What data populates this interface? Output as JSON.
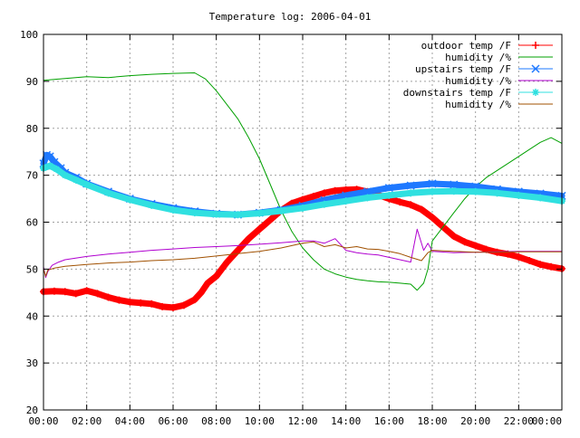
{
  "chart_data": {
    "type": "line",
    "title": "Temperature log: 2006-04-01",
    "xlabel": "",
    "ylabel": "",
    "x_unit": "hour",
    "xlim": [
      0,
      24
    ],
    "ylim": [
      20,
      100
    ],
    "x_ticks": [
      0,
      2,
      4,
      6,
      8,
      10,
      12,
      14,
      16,
      18,
      20,
      22,
      24
    ],
    "x_tick_labels": [
      "00:00",
      "02:00",
      "04:00",
      "06:00",
      "08:00",
      "10:00",
      "12:00",
      "14:00",
      "16:00",
      "18:00",
      "20:00",
      "22:00",
      "00:00"
    ],
    "y_ticks": [
      20,
      30,
      40,
      50,
      60,
      70,
      80,
      90,
      100
    ],
    "y_tick_labels": [
      "20",
      "30",
      "40",
      "50",
      "60",
      "70",
      "80",
      "90",
      "100"
    ],
    "grid": true,
    "legend_position": "top-right",
    "series": [
      {
        "name": "outdoor temp /F",
        "color": "#ff0000",
        "marker": "plus",
        "style": "thick",
        "x": [
          0,
          0.5,
          1,
          1.5,
          2,
          2.5,
          3,
          3.5,
          4,
          4.5,
          5,
          5.5,
          6,
          6.5,
          7,
          7.3,
          7.6,
          8,
          8.5,
          9,
          9.5,
          10,
          10.5,
          11,
          11.5,
          12,
          12.5,
          13,
          13.5,
          14,
          14.5,
          15,
          15.5,
          16,
          16.5,
          17,
          17.5,
          18,
          18.5,
          19,
          19.5,
          20,
          20.5,
          21,
          21.5,
          22,
          22.5,
          23,
          23.5,
          24
        ],
        "y": [
          45.2,
          45.3,
          45.2,
          44.8,
          45.4,
          44.8,
          44.0,
          43.4,
          43.0,
          42.8,
          42.6,
          42.0,
          41.8,
          42.3,
          43.5,
          45.0,
          47.0,
          48.5,
          51.5,
          54.0,
          56.5,
          58.5,
          60.5,
          62.5,
          64.0,
          64.8,
          65.5,
          66.2,
          66.7,
          66.9,
          67.0,
          66.5,
          65.8,
          65.0,
          64.3,
          63.7,
          62.7,
          61.0,
          59.0,
          57.0,
          55.8,
          55.0,
          54.2,
          53.6,
          53.2,
          52.6,
          51.8,
          51.0,
          50.5,
          50.1
        ]
      },
      {
        "name": "humidity /%",
        "color": "#00a000",
        "marker": "none",
        "style": "thin",
        "x": [
          0,
          1,
          2,
          3,
          4,
          5,
          6,
          7,
          7.5,
          8,
          8.5,
          9,
          9.5,
          10,
          10.5,
          11,
          11.5,
          12,
          12.5,
          13,
          13.5,
          14,
          14.5,
          15,
          15.5,
          16,
          16.5,
          17,
          17.3,
          17.6,
          17.8,
          18,
          18.5,
          19,
          19.5,
          20,
          20.5,
          21,
          21.5,
          22,
          22.5,
          23,
          23.5,
          24
        ],
        "y": [
          90.2,
          90.6,
          91.0,
          90.8,
          91.2,
          91.5,
          91.7,
          91.8,
          90.5,
          88.0,
          85.0,
          82.0,
          78.0,
          73.5,
          68.0,
          62.5,
          58.0,
          54.5,
          52.0,
          50.0,
          49.0,
          48.3,
          47.8,
          47.5,
          47.3,
          47.2,
          47.0,
          46.8,
          45.5,
          47.0,
          50.0,
          56.0,
          59.0,
          62.0,
          65.0,
          67.5,
          69.5,
          71.0,
          72.5,
          74.0,
          75.5,
          77.0,
          78.0,
          76.8
        ]
      },
      {
        "name": "upstairs temp /F",
        "color": "#1e78ff",
        "marker": "x",
        "style": "thick",
        "x": [
          0,
          0.15,
          0.3,
          0.5,
          0.8,
          1,
          1.5,
          2,
          3,
          4,
          5,
          6,
          7,
          8,
          9,
          10,
          11,
          12,
          13,
          14,
          15,
          16,
          17,
          18,
          19,
          20,
          21,
          22,
          23,
          24
        ],
        "y": [
          72.5,
          74.3,
          74.0,
          72.8,
          71.5,
          70.5,
          69.5,
          68.2,
          66.5,
          65.0,
          63.9,
          63.0,
          62.3,
          61.8,
          61.6,
          62.0,
          62.6,
          63.5,
          64.7,
          65.7,
          66.5,
          67.3,
          67.8,
          68.2,
          68.0,
          67.6,
          67.0,
          66.5,
          66.1,
          65.6
        ]
      },
      {
        "name": "humidity /%",
        "color": "#b000d0",
        "marker": "none",
        "style": "thin",
        "x": [
          0,
          0.1,
          0.2,
          0.4,
          0.7,
          1,
          2,
          3,
          4,
          5,
          6,
          7,
          8,
          9,
          10,
          11,
          12,
          12.5,
          13,
          13.5,
          14,
          14.5,
          15,
          15.5,
          16,
          16.5,
          17,
          17.3,
          17.6,
          17.8,
          18,
          19,
          20,
          21,
          22,
          23,
          24
        ],
        "y": [
          50.5,
          48.2,
          49.5,
          50.8,
          51.5,
          52.0,
          52.7,
          53.2,
          53.6,
          54.0,
          54.3,
          54.6,
          54.8,
          55.0,
          55.3,
          55.6,
          56.0,
          56.0,
          55.5,
          56.5,
          54.0,
          53.5,
          53.2,
          53.0,
          52.5,
          52.0,
          51.5,
          58.5,
          54.0,
          55.5,
          53.8,
          53.5,
          53.6,
          53.7,
          53.8,
          53.8,
          53.8
        ]
      },
      {
        "name": "downstairs temp /F",
        "color": "#30e0e0",
        "marker": "star",
        "style": "thick",
        "x": [
          0,
          0.3,
          0.6,
          1,
          1.5,
          2,
          3,
          4,
          5,
          6,
          7,
          8,
          9,
          10,
          11,
          12,
          13,
          14,
          15,
          16,
          17,
          18,
          19,
          20,
          21,
          22,
          23,
          24
        ],
        "y": [
          71.5,
          72.0,
          71.3,
          70.0,
          69.0,
          68.0,
          66.2,
          64.8,
          63.6,
          62.6,
          62.0,
          61.7,
          61.6,
          61.9,
          62.4,
          63.0,
          63.8,
          64.5,
          65.2,
          65.7,
          66.2,
          66.5,
          66.6,
          66.5,
          66.2,
          65.7,
          65.2,
          64.5
        ]
      },
      {
        "name": "humidity /%",
        "color": "#a05000",
        "marker": "none",
        "style": "thin",
        "x": [
          0,
          0.1,
          0.2,
          0.5,
          1,
          2,
          3,
          4,
          5,
          6,
          7,
          8,
          9,
          10,
          11,
          12,
          12.5,
          13,
          13.5,
          14,
          14.5,
          15,
          15.5,
          16,
          16.5,
          17,
          17.5,
          17.8,
          18,
          19,
          20,
          21,
          22,
          23,
          24
        ],
        "y": [
          50.0,
          48.5,
          49.8,
          50.2,
          50.6,
          51.0,
          51.3,
          51.5,
          51.8,
          52.0,
          52.3,
          52.8,
          53.3,
          53.8,
          54.5,
          55.5,
          55.8,
          54.8,
          55.2,
          54.5,
          54.8,
          54.3,
          54.2,
          53.8,
          53.3,
          52.5,
          51.8,
          53.5,
          54.0,
          53.8,
          53.6,
          53.6,
          53.7,
          53.7,
          53.7
        ]
      }
    ]
  }
}
